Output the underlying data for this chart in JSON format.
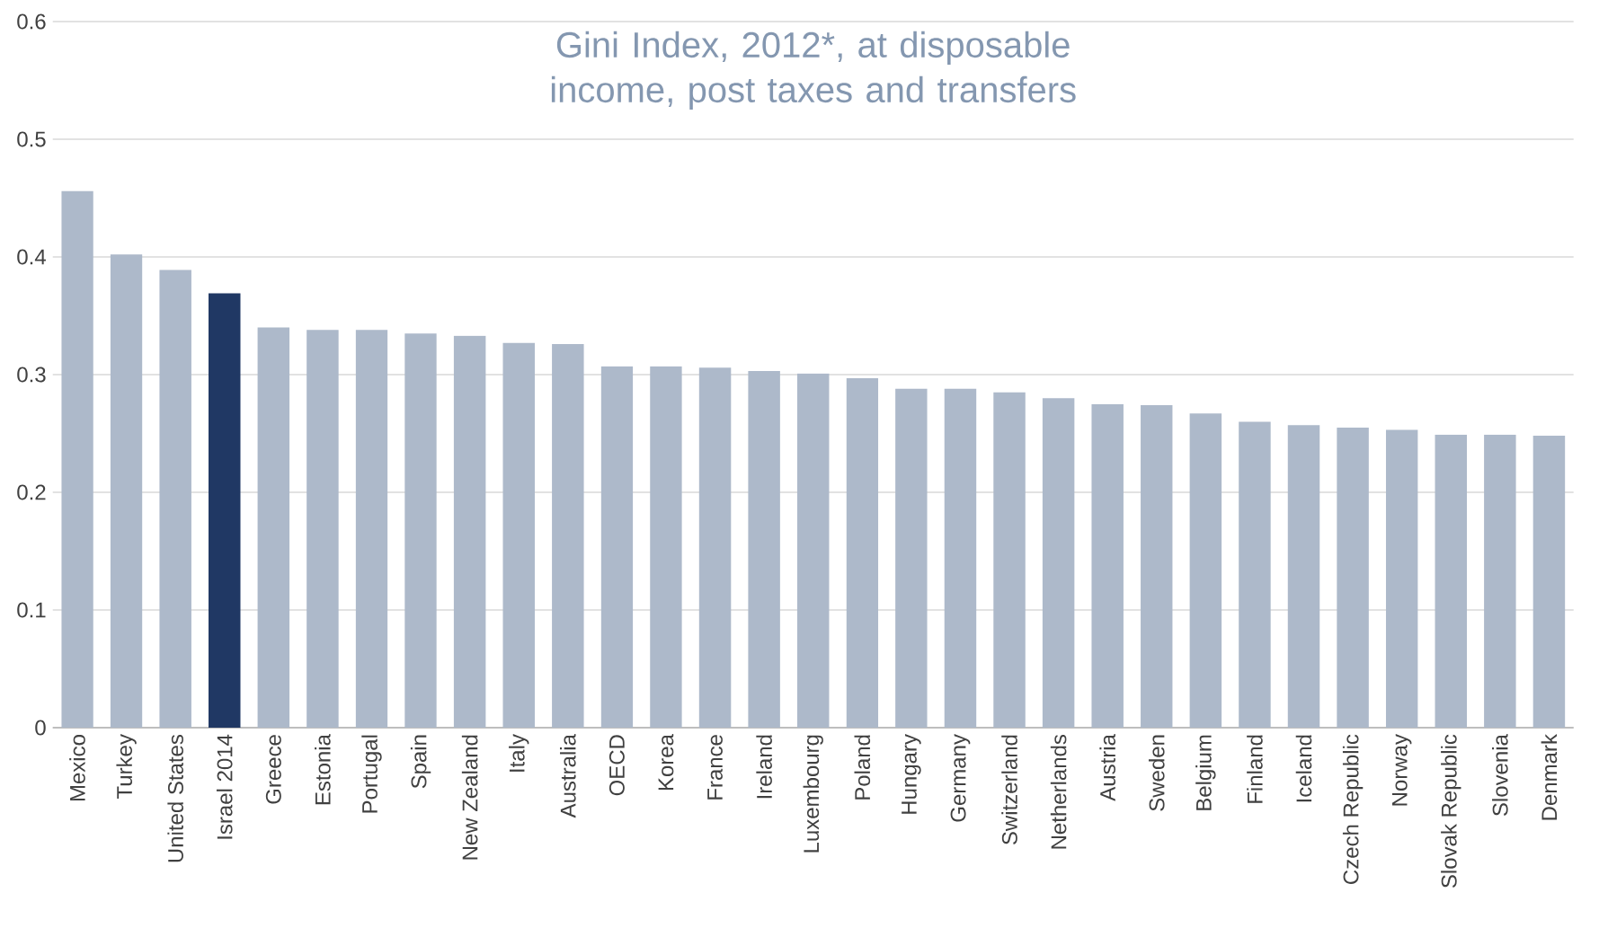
{
  "chart_data": {
    "type": "bar",
    "title": "Gini Index, 2012*, at disposable income, post taxes and transfers",
    "categories": [
      "Mexico",
      "Turkey",
      "United States",
      "Israel 2014",
      "Greece",
      "Estonia",
      "Portugal",
      "Spain",
      "New Zealand",
      "Italy",
      "Australia",
      "OECD",
      "Korea",
      "France",
      "Ireland",
      "Luxembourg",
      "Poland",
      "Hungary",
      "Germany",
      "Switzerland",
      "Netherlands",
      "Austria",
      "Sweden",
      "Belgium",
      "Finland",
      "Iceland",
      "Czech Republic",
      "Norway",
      "Slovak Republic",
      "Slovenia",
      "Denmark"
    ],
    "values": [
      0.456,
      0.402,
      0.389,
      0.369,
      0.34,
      0.338,
      0.338,
      0.335,
      0.333,
      0.327,
      0.326,
      0.307,
      0.307,
      0.306,
      0.303,
      0.301,
      0.297,
      0.288,
      0.288,
      0.285,
      0.28,
      0.275,
      0.274,
      0.267,
      0.26,
      0.257,
      0.255,
      0.253,
      0.249,
      0.249,
      0.248
    ],
    "colors": [
      "#adb9ca",
      "#adb9ca",
      "#adb9ca",
      "#203864",
      "#adb9ca",
      "#adb9ca",
      "#adb9ca",
      "#adb9ca",
      "#adb9ca",
      "#adb9ca",
      "#adb9ca",
      "#adb9ca",
      "#adb9ca",
      "#adb9ca",
      "#adb9ca",
      "#adb9ca",
      "#adb9ca",
      "#adb9ca",
      "#adb9ca",
      "#adb9ca",
      "#adb9ca",
      "#adb9ca",
      "#adb9ca",
      "#adb9ca",
      "#adb9ca",
      "#adb9ca",
      "#adb9ca",
      "#adb9ca",
      "#adb9ca",
      "#adb9ca",
      "#adb9ca"
    ],
    "ylim": [
      0,
      0.6
    ],
    "yticks": [
      0,
      0.1,
      0.2,
      0.3,
      0.4,
      0.5,
      0.6
    ],
    "grid": "y"
  }
}
